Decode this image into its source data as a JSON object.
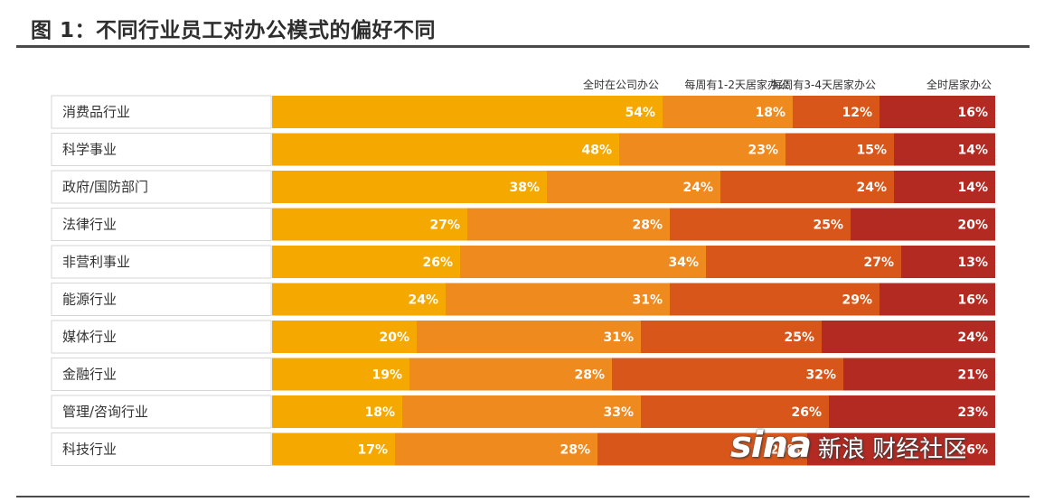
{
  "title": "图 1：不同行业员工对办公模式的偏好不同",
  "watermark": {
    "logo": "sina",
    "text": "新浪 财经社区"
  },
  "chart_data": {
    "type": "bar",
    "orientation": "horizontal",
    "stacked": true,
    "legend_position": "top",
    "categories": [
      "消费品行业",
      "科学事业",
      "政府/国防部门",
      "法律行业",
      "非营利事业",
      "能源行业",
      "媒体行业",
      "金融行业",
      "管理/咨询行业",
      "科技行业"
    ],
    "series": [
      {
        "name": "全时在公司办公",
        "color": "#f5a900",
        "values": [
          54,
          48,
          38,
          27,
          26,
          24,
          20,
          19,
          18,
          17
        ]
      },
      {
        "name": "每周有1-2天居家办公",
        "color": "#ef8a1f",
        "values": [
          18,
          23,
          24,
          28,
          34,
          31,
          31,
          28,
          33,
          28
        ]
      },
      {
        "name": "每周有3-4天居家办公",
        "color": "#d9561a",
        "values": [
          12,
          15,
          24,
          25,
          27,
          29,
          25,
          32,
          26,
          29
        ]
      },
      {
        "name": "全时居家办公",
        "color": "#b22a22",
        "values": [
          16,
          14,
          14,
          20,
          13,
          16,
          24,
          21,
          23,
          26
        ]
      }
    ],
    "value_suffix": "%",
    "xlim": [
      0,
      100
    ]
  }
}
